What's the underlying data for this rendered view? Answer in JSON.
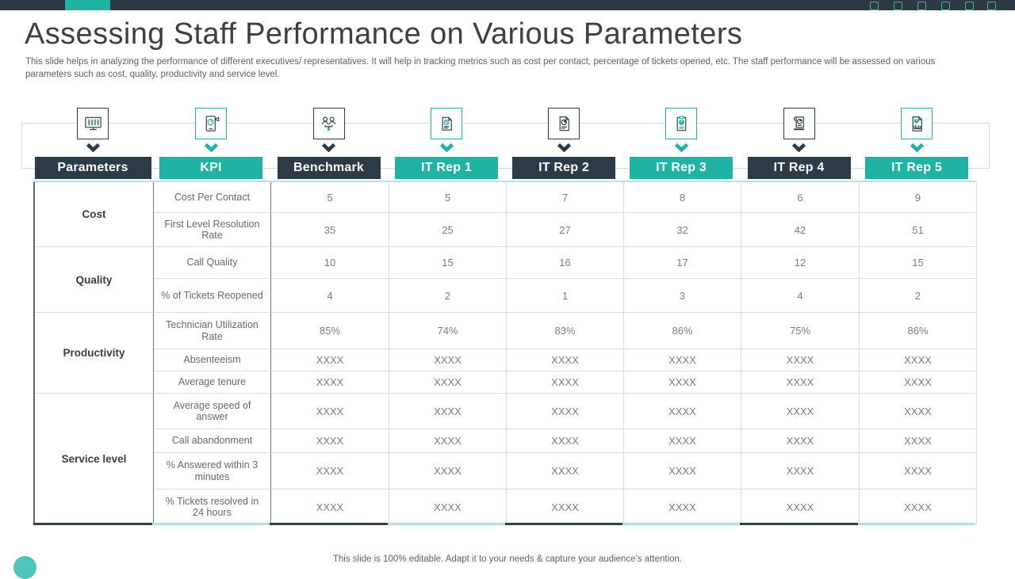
{
  "accent": {
    "teal": "#20b2a2",
    "dark": "#2c3b46",
    "light_teal": "#aee3dd",
    "border_gray": "#dcdcdc"
  },
  "slide": {
    "title": "Assessing Staff Performance on Various Parameters",
    "subtitle": "This slide helps in analyzing the performance of different executives/ representatives. It will help in tracking metrics such as cost per contact, percentage of tickets opened, etc.  The staff performance will be assessed on various parameters such as cost, quality, productivity and service level.",
    "footer": "This slide is 100% editable. Adapt it to your needs & capture your audience’s attention."
  },
  "columns": [
    {
      "label": "Parameters",
      "theme": "dark",
      "icon": "monitor-sliders-icon"
    },
    {
      "label": "KPI",
      "theme": "teal",
      "icon": "mobile-gauge-icon"
    },
    {
      "label": "Benchmark",
      "theme": "dark",
      "icon": "people-network-icon"
    },
    {
      "label": "IT Rep 1",
      "theme": "teal",
      "icon": "report-pie-icon"
    },
    {
      "label": "IT Rep 2",
      "theme": "dark",
      "icon": "document-pie-icon"
    },
    {
      "label": "IT Rep 3",
      "theme": "teal",
      "icon": "clipboard-chart-icon"
    },
    {
      "label": "IT Rep 4",
      "theme": "dark",
      "icon": "scroll-chart-icon"
    },
    {
      "label": "IT Rep 5",
      "theme": "teal",
      "icon": "report-bar-pie-icon"
    }
  ],
  "table": {
    "groups": [
      {
        "label": "Cost",
        "rows": [
          {
            "kpi": "Cost Per Contact",
            "values": [
              "5",
              "5",
              "7",
              "8",
              "6",
              "9"
            ]
          },
          {
            "kpi": "First Level Resolution Rate",
            "values": [
              "35",
              "25",
              "27",
              "32",
              "42",
              "51"
            ]
          }
        ]
      },
      {
        "label": "Quality",
        "rows": [
          {
            "kpi": "Call Quality",
            "values": [
              "10",
              "15",
              "16",
              "17",
              "12",
              "15"
            ]
          },
          {
            "kpi": "% of Tickets Reopened",
            "values": [
              "4",
              "2",
              "1",
              "3",
              "4",
              "2"
            ]
          }
        ]
      },
      {
        "label": "Productivity",
        "rows": [
          {
            "kpi": "Technician Utilization Rate",
            "values": [
              "85%",
              "74%",
              "83%",
              "86%",
              "75%",
              "86%"
            ]
          },
          {
            "kpi": "Absenteeism",
            "values": [
              "XXXX",
              "XXXX",
              "XXXX",
              "XXXX",
              "XXXX",
              "XXXX"
            ]
          },
          {
            "kpi": "Average tenure",
            "values": [
              "XXXX",
              "XXXX",
              "XXXX",
              "XXXX",
              "XXXX",
              "XXXX"
            ]
          }
        ]
      },
      {
        "label": "Service level",
        "rows": [
          {
            "kpi": "Average speed of answer",
            "values": [
              "XXXX",
              "XXXX",
              "XXXX",
              "XXXX",
              "XXXX",
              "XXXX"
            ]
          },
          {
            "kpi": "Call abandonment",
            "values": [
              "XXXX",
              "XXXX",
              "XXXX",
              "XXXX",
              "XXXX",
              "XXXX"
            ]
          },
          {
            "kpi": "% Answered within 3 minutes",
            "values": [
              "XXXX",
              "XXXX",
              "XXXX",
              "XXXX",
              "XXXX",
              "XXXX"
            ]
          },
          {
            "kpi": "% Tickets resolved in 24 hours",
            "values": [
              "XXXX",
              "XXXX",
              "XXXX",
              "XXXX",
              "XXXX",
              "XXXX"
            ]
          }
        ]
      }
    ]
  }
}
